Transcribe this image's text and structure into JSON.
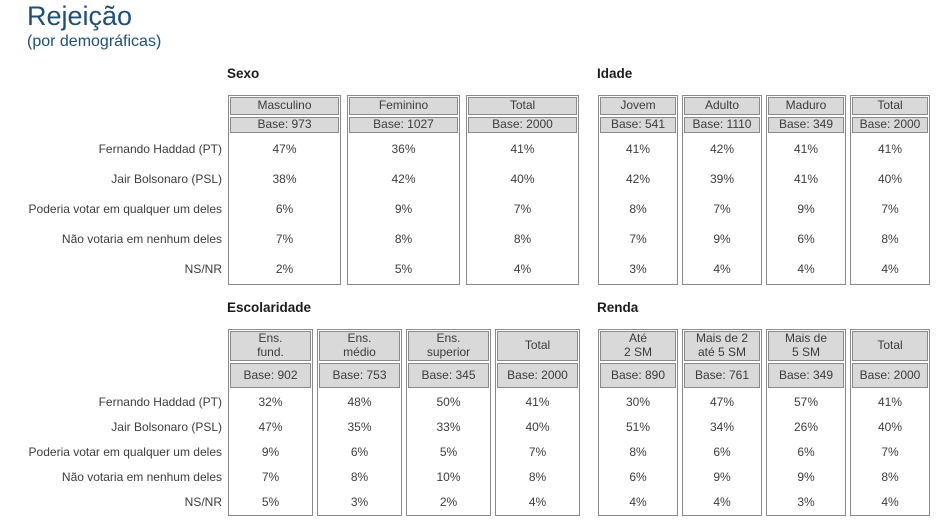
{
  "page": {
    "title": "Rejeição",
    "subtitle": "(por demográficas)",
    "title_color": "#1f4e79",
    "background_color": "#ffffff",
    "header_cell_color": "#d9d9d9",
    "border_color": "#8a8a8a"
  },
  "row_labels": [
    "Fernando Haddad (PT)",
    "Jair Bolsonaro (PSL)",
    "Poderia votar em qualquer um deles",
    "Não votaria em nenhum deles",
    "NS/NR"
  ],
  "tables": [
    {
      "id": "sexo",
      "title": "Sexo",
      "columns": [
        {
          "header": "Masculino",
          "base": "Base: 973",
          "values": [
            "47%",
            "38%",
            "6%",
            "7%",
            "2%"
          ]
        },
        {
          "header": "Feminino",
          "base": "Base: 1027",
          "values": [
            "36%",
            "42%",
            "9%",
            "8%",
            "5%"
          ]
        },
        {
          "header": "Total",
          "base": "Base: 2000",
          "values": [
            "41%",
            "40%",
            "7%",
            "8%",
            "4%"
          ]
        }
      ]
    },
    {
      "id": "idade",
      "title": "Idade",
      "columns": [
        {
          "header": "Jovem",
          "base": "Base: 541",
          "values": [
            "41%",
            "42%",
            "8%",
            "7%",
            "3%"
          ]
        },
        {
          "header": "Adulto",
          "base": "Base: 1110",
          "values": [
            "42%",
            "39%",
            "7%",
            "9%",
            "4%"
          ]
        },
        {
          "header": "Maduro",
          "base": "Base: 349",
          "values": [
            "41%",
            "41%",
            "9%",
            "6%",
            "4%"
          ]
        },
        {
          "header": "Total",
          "base": "Base: 2000",
          "values": [
            "41%",
            "40%",
            "7%",
            "8%",
            "4%"
          ]
        }
      ]
    },
    {
      "id": "escolaridade",
      "title": "Escolaridade",
      "columns": [
        {
          "header": "Ens.\nfund.",
          "base": "Base: 902",
          "values": [
            "32%",
            "47%",
            "9%",
            "7%",
            "5%"
          ]
        },
        {
          "header": "Ens.\nmédio",
          "base": "Base: 753",
          "values": [
            "48%",
            "35%",
            "6%",
            "8%",
            "3%"
          ]
        },
        {
          "header": "Ens.\nsuperior",
          "base": "Base: 345",
          "values": [
            "50%",
            "33%",
            "5%",
            "10%",
            "2%"
          ]
        },
        {
          "header": "Total",
          "base": "Base: 2000",
          "values": [
            "41%",
            "40%",
            "7%",
            "8%",
            "4%"
          ]
        }
      ]
    },
    {
      "id": "renda",
      "title": "Renda",
      "columns": [
        {
          "header": "Até\n2 SM",
          "base": "Base: 890",
          "values": [
            "30%",
            "51%",
            "8%",
            "6%",
            "4%"
          ]
        },
        {
          "header": "Mais de 2\naté 5 SM",
          "base": "Base: 761",
          "values": [
            "47%",
            "34%",
            "6%",
            "9%",
            "4%"
          ]
        },
        {
          "header": "Mais de\n5 SM",
          "base": "Base: 349",
          "values": [
            "57%",
            "26%",
            "6%",
            "9%",
            "3%"
          ]
        },
        {
          "header": "Total",
          "base": "Base: 2000",
          "values": [
            "41%",
            "40%",
            "7%",
            "8%",
            "4%"
          ]
        }
      ]
    }
  ]
}
